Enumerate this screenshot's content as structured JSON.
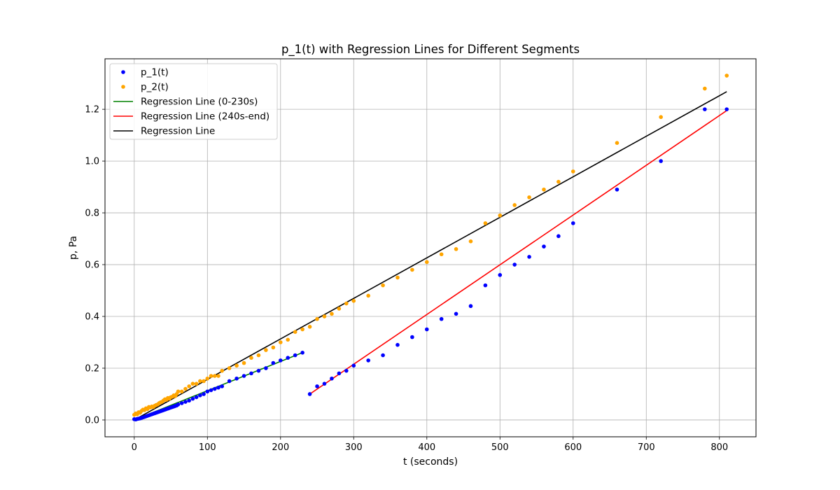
{
  "chart_data": {
    "type": "scatter",
    "title": "p_1(t) with Regression Lines for Different Segments",
    "xlabel": "t (seconds)",
    "ylabel": "p, Pa",
    "xlim": [
      -40,
      850
    ],
    "ylim": [
      -0.065,
      1.395
    ],
    "xticks": [
      0,
      100,
      200,
      300,
      400,
      500,
      600,
      700,
      800
    ],
    "yticks": [
      0.0,
      0.2,
      0.4,
      0.6,
      0.8,
      1.0,
      1.2
    ],
    "xtick_labels": [
      "0",
      "100",
      "200",
      "300",
      "400",
      "500",
      "600",
      "700",
      "800"
    ],
    "ytick_labels": [
      "0.0",
      "0.2",
      "0.4",
      "0.6",
      "0.8",
      "1.0",
      "1.2"
    ],
    "grid": true,
    "legend_position": "top-left",
    "legend": [
      "p_1(t)",
      "p_2(t)",
      "Regression Line (0-230s)",
      "Regression Line (240s-end)",
      "Regression Line"
    ],
    "series": [
      {
        "name": "p_1(t)",
        "kind": "scatter",
        "color": "#0000ff",
        "x": [
          0,
          2,
          4,
          6,
          8,
          10,
          12,
          14,
          16,
          18,
          20,
          22,
          24,
          26,
          28,
          30,
          32,
          34,
          36,
          38,
          40,
          42,
          44,
          46,
          48,
          50,
          52,
          54,
          56,
          58,
          60,
          65,
          70,
          75,
          80,
          85,
          90,
          95,
          100,
          105,
          110,
          115,
          120,
          130,
          140,
          150,
          160,
          170,
          180,
          190,
          200,
          210,
          220,
          230,
          240,
          250,
          260,
          270,
          280,
          290,
          300,
          320,
          340,
          360,
          380,
          400,
          420,
          440,
          460,
          480,
          500,
          520,
          540,
          560,
          580,
          600,
          660,
          720,
          780,
          810
        ],
        "y": [
          0.003,
          0.002,
          0.004,
          0.005,
          0.006,
          0.008,
          0.01,
          0.012,
          0.014,
          0.016,
          0.018,
          0.02,
          0.022,
          0.024,
          0.026,
          0.028,
          0.03,
          0.032,
          0.034,
          0.036,
          0.038,
          0.04,
          0.042,
          0.044,
          0.046,
          0.048,
          0.05,
          0.052,
          0.054,
          0.056,
          0.06,
          0.065,
          0.07,
          0.075,
          0.082,
          0.088,
          0.095,
          0.1,
          0.11,
          0.115,
          0.12,
          0.125,
          0.13,
          0.15,
          0.16,
          0.17,
          0.18,
          0.19,
          0.2,
          0.22,
          0.23,
          0.24,
          0.25,
          0.26,
          0.1,
          0.13,
          0.14,
          0.16,
          0.18,
          0.19,
          0.21,
          0.23,
          0.25,
          0.29,
          0.32,
          0.35,
          0.39,
          0.41,
          0.44,
          0.52,
          0.56,
          0.6,
          0.63,
          0.67,
          0.71,
          0.76,
          0.89,
          1.0,
          1.2,
          1.2
        ]
      },
      {
        "name": "p_2(t)",
        "kind": "scatter",
        "color": "#ffa500",
        "x": [
          0,
          2,
          4,
          6,
          8,
          10,
          12,
          14,
          16,
          18,
          20,
          22,
          24,
          26,
          28,
          30,
          32,
          34,
          36,
          38,
          40,
          42,
          44,
          46,
          48,
          50,
          52,
          54,
          56,
          58,
          60,
          65,
          70,
          75,
          80,
          85,
          90,
          95,
          100,
          105,
          110,
          115,
          120,
          130,
          140,
          150,
          160,
          170,
          180,
          190,
          200,
          210,
          220,
          230,
          240,
          250,
          260,
          270,
          280,
          290,
          300,
          320,
          340,
          360,
          380,
          400,
          420,
          440,
          460,
          480,
          500,
          520,
          540,
          560,
          580,
          600,
          660,
          720,
          780,
          810
        ],
        "y": [
          0.02,
          0.025,
          0.022,
          0.03,
          0.028,
          0.035,
          0.04,
          0.038,
          0.045,
          0.042,
          0.05,
          0.048,
          0.052,
          0.05,
          0.055,
          0.058,
          0.06,
          0.065,
          0.068,
          0.07,
          0.075,
          0.08,
          0.078,
          0.085,
          0.082,
          0.088,
          0.09,
          0.095,
          0.092,
          0.1,
          0.11,
          0.11,
          0.12,
          0.13,
          0.14,
          0.14,
          0.15,
          0.15,
          0.16,
          0.17,
          0.17,
          0.17,
          0.19,
          0.2,
          0.21,
          0.22,
          0.24,
          0.25,
          0.27,
          0.28,
          0.3,
          0.31,
          0.34,
          0.35,
          0.36,
          0.39,
          0.4,
          0.41,
          0.43,
          0.45,
          0.46,
          0.48,
          0.52,
          0.55,
          0.58,
          0.61,
          0.64,
          0.66,
          0.69,
          0.76,
          0.79,
          0.83,
          0.86,
          0.89,
          0.92,
          0.96,
          1.07,
          1.17,
          1.28,
          1.33
        ]
      },
      {
        "name": "Regression Line (0-230s)",
        "kind": "line",
        "color": "#008000",
        "x": [
          0,
          230
        ],
        "y": [
          0.0,
          0.26
        ]
      },
      {
        "name": "Regression Line (240s-end)",
        "kind": "line",
        "color": "#ff0000",
        "x": [
          240,
          810
        ],
        "y": [
          0.1,
          1.195
        ]
      },
      {
        "name": "Regression Line",
        "kind": "line",
        "color": "#000000",
        "x": [
          0,
          810
        ],
        "y": [
          0.0,
          1.268
        ]
      }
    ]
  }
}
